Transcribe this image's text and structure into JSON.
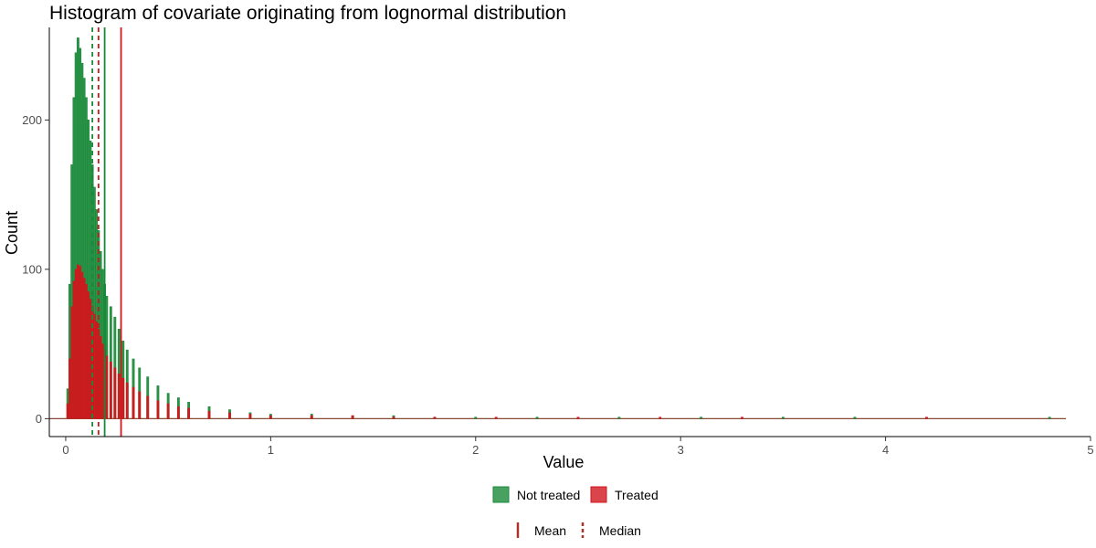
{
  "chart_data": {
    "type": "histogram",
    "title": "Histogram of covariate originating from lognormal distribution",
    "xlabel": "Value",
    "ylabel": "Count",
    "xlim": [
      -0.08,
      5.0
    ],
    "ylim": [
      -12,
      262
    ],
    "xticks": [
      0,
      1,
      2,
      3,
      4,
      5
    ],
    "xtick_labels": [
      "0",
      "1",
      "2",
      "3",
      "4",
      "5"
    ],
    "yticks": [
      0,
      100,
      200
    ],
    "ytick_labels": [
      "0",
      "100",
      "200"
    ],
    "grid": false,
    "bin_width": 0.01,
    "series": [
      {
        "name": "Not treated",
        "color": "#1a8a3a",
        "bins": [
          {
            "x": 0.01,
            "count": 20
          },
          {
            "x": 0.02,
            "count": 90
          },
          {
            "x": 0.03,
            "count": 170
          },
          {
            "x": 0.04,
            "count": 215
          },
          {
            "x": 0.05,
            "count": 245
          },
          {
            "x": 0.06,
            "count": 255
          },
          {
            "x": 0.07,
            "count": 248
          },
          {
            "x": 0.08,
            "count": 238
          },
          {
            "x": 0.09,
            "count": 228
          },
          {
            "x": 0.1,
            "count": 215
          },
          {
            "x": 0.11,
            "count": 200
          },
          {
            "x": 0.12,
            "count": 186
          },
          {
            "x": 0.13,
            "count": 170
          },
          {
            "x": 0.14,
            "count": 155
          },
          {
            "x": 0.15,
            "count": 140
          },
          {
            "x": 0.16,
            "count": 126
          },
          {
            "x": 0.17,
            "count": 112
          },
          {
            "x": 0.18,
            "count": 100
          },
          {
            "x": 0.19,
            "count": 90
          },
          {
            "x": 0.2,
            "count": 82
          },
          {
            "x": 0.22,
            "count": 75
          },
          {
            "x": 0.24,
            "count": 68
          },
          {
            "x": 0.26,
            "count": 60
          },
          {
            "x": 0.28,
            "count": 52
          },
          {
            "x": 0.3,
            "count": 46
          },
          {
            "x": 0.33,
            "count": 40
          },
          {
            "x": 0.36,
            "count": 34
          },
          {
            "x": 0.4,
            "count": 28
          },
          {
            "x": 0.45,
            "count": 22
          },
          {
            "x": 0.5,
            "count": 17
          },
          {
            "x": 0.55,
            "count": 14
          },
          {
            "x": 0.6,
            "count": 11
          },
          {
            "x": 0.7,
            "count": 8
          },
          {
            "x": 0.8,
            "count": 6
          },
          {
            "x": 0.9,
            "count": 4
          },
          {
            "x": 1.0,
            "count": 3
          },
          {
            "x": 1.2,
            "count": 3
          },
          {
            "x": 1.4,
            "count": 2
          },
          {
            "x": 1.6,
            "count": 2
          },
          {
            "x": 1.8,
            "count": 1
          },
          {
            "x": 2.0,
            "count": 1
          },
          {
            "x": 2.3,
            "count": 1
          },
          {
            "x": 2.7,
            "count": 1
          },
          {
            "x": 3.1,
            "count": 1
          },
          {
            "x": 3.5,
            "count": 1
          },
          {
            "x": 3.85,
            "count": 1
          },
          {
            "x": 4.8,
            "count": 1
          }
        ],
        "mean": 0.19,
        "median": 0.13
      },
      {
        "name": "Treated",
        "color": "#d0171d",
        "bins": [
          {
            "x": 0.01,
            "count": 10
          },
          {
            "x": 0.02,
            "count": 40
          },
          {
            "x": 0.03,
            "count": 75
          },
          {
            "x": 0.04,
            "count": 92
          },
          {
            "x": 0.05,
            "count": 100
          },
          {
            "x": 0.06,
            "count": 103
          },
          {
            "x": 0.07,
            "count": 102
          },
          {
            "x": 0.08,
            "count": 98
          },
          {
            "x": 0.09,
            "count": 94
          },
          {
            "x": 0.1,
            "count": 90
          },
          {
            "x": 0.11,
            "count": 85
          },
          {
            "x": 0.12,
            "count": 80
          },
          {
            "x": 0.13,
            "count": 75
          },
          {
            "x": 0.14,
            "count": 70
          },
          {
            "x": 0.15,
            "count": 65
          },
          {
            "x": 0.16,
            "count": 60
          },
          {
            "x": 0.17,
            "count": 55
          },
          {
            "x": 0.18,
            "count": 50
          },
          {
            "x": 0.19,
            "count": 46
          },
          {
            "x": 0.2,
            "count": 42
          },
          {
            "x": 0.22,
            "count": 38
          },
          {
            "x": 0.24,
            "count": 34
          },
          {
            "x": 0.26,
            "count": 30
          },
          {
            "x": 0.28,
            "count": 27
          },
          {
            "x": 0.3,
            "count": 24
          },
          {
            "x": 0.33,
            "count": 21
          },
          {
            "x": 0.36,
            "count": 18
          },
          {
            "x": 0.4,
            "count": 15
          },
          {
            "x": 0.45,
            "count": 12
          },
          {
            "x": 0.5,
            "count": 10
          },
          {
            "x": 0.55,
            "count": 8
          },
          {
            "x": 0.6,
            "count": 7
          },
          {
            "x": 0.7,
            "count": 5
          },
          {
            "x": 0.8,
            "count": 4
          },
          {
            "x": 0.9,
            "count": 3
          },
          {
            "x": 1.0,
            "count": 2
          },
          {
            "x": 1.2,
            "count": 2
          },
          {
            "x": 1.4,
            "count": 2
          },
          {
            "x": 1.6,
            "count": 1
          },
          {
            "x": 1.8,
            "count": 1
          },
          {
            "x": 2.1,
            "count": 1
          },
          {
            "x": 2.5,
            "count": 1
          },
          {
            "x": 2.9,
            "count": 1
          },
          {
            "x": 3.3,
            "count": 1
          },
          {
            "x": 4.2,
            "count": 1
          }
        ],
        "mean": 0.27,
        "median": 0.16
      }
    ],
    "legend": {
      "fill": [
        "Not treated",
        "Treated"
      ],
      "linetype": [
        "Mean",
        "Median"
      ],
      "position": "bottom"
    }
  }
}
